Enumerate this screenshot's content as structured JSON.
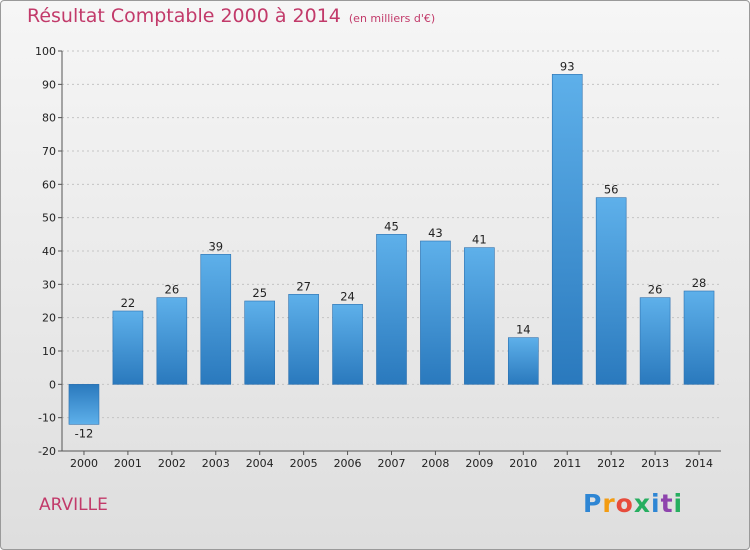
{
  "chart_data": {
    "type": "bar",
    "title": "Résultat Comptable 2000 à 2014",
    "subtitle": "(en milliers d'€)",
    "categories": [
      "2000",
      "2001",
      "2002",
      "2003",
      "2004",
      "2005",
      "2006",
      "2007",
      "2008",
      "2009",
      "2010",
      "2011",
      "2012",
      "2013",
      "2014"
    ],
    "values": [
      -12,
      22,
      26,
      39,
      25,
      27,
      24,
      45,
      43,
      41,
      14,
      93,
      56,
      26,
      28
    ],
    "data_labels": [
      "-12",
      "22",
      "26",
      "39",
      "25",
      "27",
      "24",
      "45",
      "43",
      "41",
      "14",
      "93",
      "56",
      "26",
      "28"
    ],
    "ylim": [
      -20,
      100
    ],
    "yticks": [
      -20,
      -10,
      0,
      10,
      20,
      30,
      40,
      50,
      60,
      70,
      80,
      90,
      100
    ],
    "grid": true,
    "bar_color": "#3d8fd1"
  },
  "footer": {
    "commune": "ARVILLE",
    "logo": "Proxiti",
    "logo_colors": [
      "#2e86d4",
      "#f39c12",
      "#e74c3c",
      "#27ae60",
      "#2e86d4",
      "#8e44ad",
      "#27ae60"
    ]
  }
}
